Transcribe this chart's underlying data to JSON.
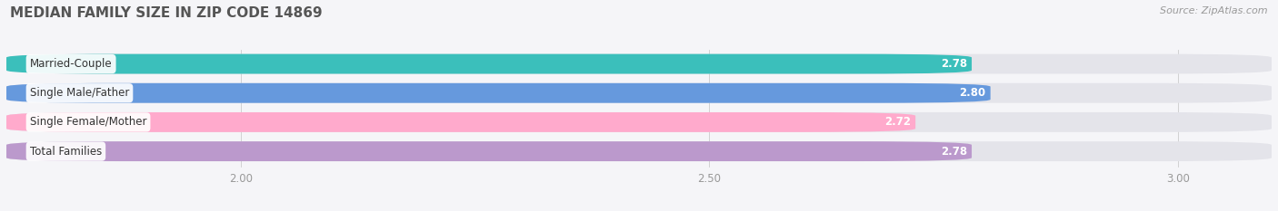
{
  "title": "MEDIAN FAMILY SIZE IN ZIP CODE 14869",
  "source": "Source: ZipAtlas.com",
  "categories": [
    "Married-Couple",
    "Single Male/Father",
    "Single Female/Mother",
    "Total Families"
  ],
  "values": [
    2.78,
    2.8,
    2.72,
    2.78
  ],
  "bar_colors": [
    "#3bbfbb",
    "#6699dd",
    "#ffaacc",
    "#bb99cc"
  ],
  "bar_bg_color": "#e4e4ea",
  "xmin": 1.75,
  "xmax": 3.1,
  "data_min": 0.0,
  "xticks": [
    2.0,
    2.5,
    3.0
  ],
  "xtick_labels": [
    "2.00",
    "2.50",
    "3.00"
  ],
  "background_color": "#f5f5f8",
  "title_fontsize": 11,
  "label_fontsize": 8.5,
  "value_fontsize": 8.5,
  "source_fontsize": 8
}
